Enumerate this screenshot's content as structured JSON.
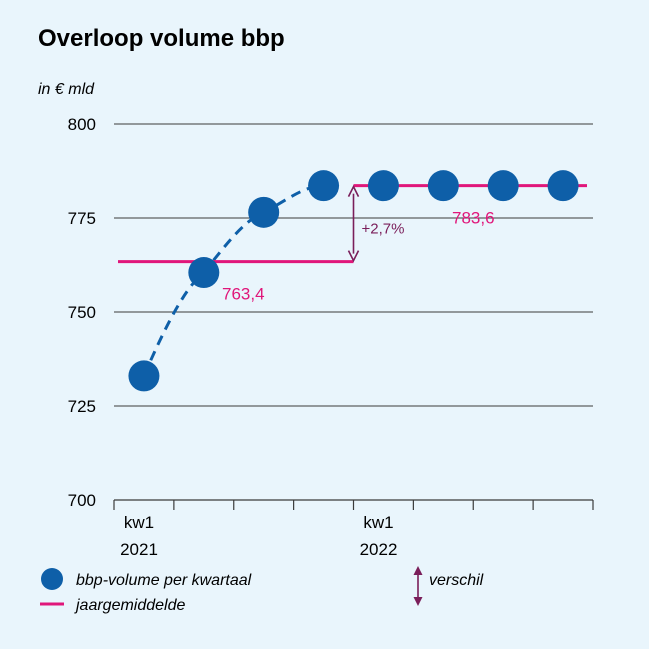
{
  "chart_data": {
    "type": "scatter",
    "title": "Overloop volume bbp",
    "ylabel": "in € mld",
    "ylim": [
      700,
      800
    ],
    "yticks": [
      700,
      725,
      750,
      775,
      800
    ],
    "grid": true,
    "quarters": [
      "2021 kw1",
      "2021 kw2",
      "2021 kw3",
      "2021 kw4",
      "2022 kw1",
      "2022 kw2",
      "2022 kw3",
      "2022 kw4"
    ],
    "x_tick_labels": [
      {
        "top": "kw1",
        "bottom": "2021",
        "quarter_index": 0
      },
      {
        "top": "kw1",
        "bottom": "2022",
        "quarter_index": 4
      }
    ],
    "series": [
      {
        "name": "bbp-volume per kwartaal",
        "values": [
          733,
          760.5,
          776.5,
          783.6,
          783.6,
          783.6,
          783.6,
          783.6
        ],
        "color": "#0e5fa8"
      },
      {
        "name": "jaargemiddelde",
        "color": "#e0167a",
        "segments": [
          {
            "year": "2021",
            "value": 763.4,
            "label": "763,4"
          },
          {
            "year": "2022",
            "value": 783.6,
            "label": "783,6"
          }
        ]
      }
    ],
    "annotations": [
      {
        "type": "difference-arrow",
        "from": 763.4,
        "to": 783.6,
        "label": "+2,7%",
        "color": "#7a1e5a"
      }
    ],
    "legend": {
      "placement": "bottom",
      "items": [
        {
          "label": "bbp-volume per kwartaal",
          "symbol": "dot"
        },
        {
          "label": "jaargemiddelde",
          "symbol": "line"
        },
        {
          "label": "verschil",
          "symbol": "double-arrow"
        }
      ]
    }
  }
}
